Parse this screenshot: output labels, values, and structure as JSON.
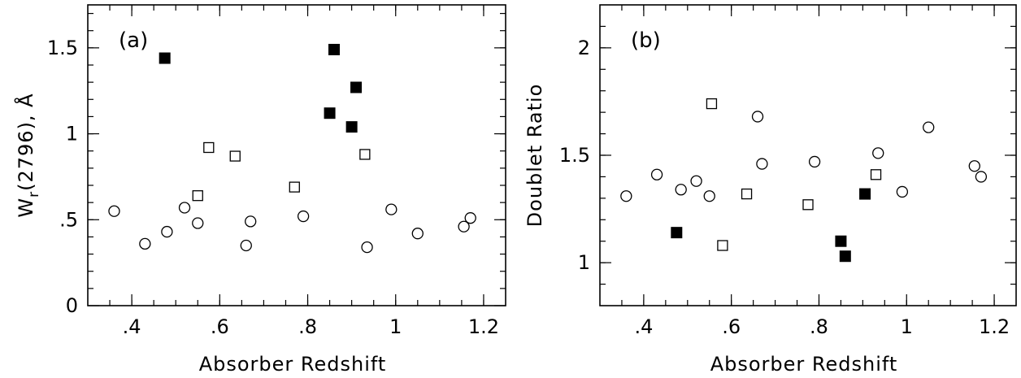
{
  "chart_data": [
    {
      "type": "scatter",
      "panel_label": "(a)",
      "xlabel": "Absorber Redshift",
      "ylabel_main": "W",
      "ylabel_sub": "r",
      "ylabel_rest": "(2796), Å",
      "xlim": [
        0.3,
        1.25
      ],
      "ylim": [
        0,
        1.75
      ],
      "xticks": [
        {
          "value": 0.4,
          "label": ".4"
        },
        {
          "value": 0.6,
          "label": ".6"
        },
        {
          "value": 0.8,
          "label": ".8"
        },
        {
          "value": 1.0,
          "label": "1"
        },
        {
          "value": 1.2,
          "label": "1.2"
        }
      ],
      "yticks": [
        {
          "value": 0,
          "label": "0"
        },
        {
          "value": 0.5,
          "label": ".5"
        },
        {
          "value": 1.0,
          "label": "1"
        },
        {
          "value": 1.5,
          "label": "1.5"
        }
      ],
      "minor_x_step": 0.05,
      "minor_y_step": 0.1,
      "series": [
        {
          "marker": "open-circle",
          "points": [
            [
              0.36,
              0.55
            ],
            [
              0.43,
              0.36
            ],
            [
              0.48,
              0.43
            ],
            [
              0.52,
              0.57
            ],
            [
              0.55,
              0.48
            ],
            [
              0.66,
              0.35
            ],
            [
              0.67,
              0.49
            ],
            [
              0.79,
              0.52
            ],
            [
              0.935,
              0.34
            ],
            [
              0.99,
              0.56
            ],
            [
              1.05,
              0.42
            ],
            [
              1.155,
              0.46
            ],
            [
              1.17,
              0.51
            ]
          ]
        },
        {
          "marker": "open-square",
          "points": [
            [
              0.55,
              0.64
            ],
            [
              0.575,
              0.92
            ],
            [
              0.635,
              0.87
            ],
            [
              0.77,
              0.69
            ],
            [
              0.93,
              0.88
            ]
          ]
        },
        {
          "marker": "filled-square",
          "points": [
            [
              0.475,
              1.44
            ],
            [
              0.85,
              1.12
            ],
            [
              0.86,
              1.49
            ],
            [
              0.9,
              1.04
            ],
            [
              0.91,
              1.27
            ]
          ]
        }
      ]
    },
    {
      "type": "scatter",
      "panel_label": "(b)",
      "xlabel": "Absorber Redshift",
      "ylabel": "Doublet Ratio",
      "xlim": [
        0.3,
        1.25
      ],
      "ylim": [
        0.8,
        2.2
      ],
      "xticks": [
        {
          "value": 0.4,
          "label": ".4"
        },
        {
          "value": 0.6,
          "label": ".6"
        },
        {
          "value": 0.8,
          "label": ".8"
        },
        {
          "value": 1.0,
          "label": "1"
        },
        {
          "value": 1.2,
          "label": "1.2"
        }
      ],
      "yticks": [
        {
          "value": 1.0,
          "label": "1"
        },
        {
          "value": 1.5,
          "label": "1.5"
        },
        {
          "value": 2.0,
          "label": "2"
        }
      ],
      "minor_x_step": 0.05,
      "minor_y_step": 0.1,
      "series": [
        {
          "marker": "open-circle",
          "points": [
            [
              0.36,
              1.31
            ],
            [
              0.43,
              1.41
            ],
            [
              0.485,
              1.34
            ],
            [
              0.52,
              1.38
            ],
            [
              0.55,
              1.31
            ],
            [
              0.66,
              1.68
            ],
            [
              0.67,
              1.46
            ],
            [
              0.79,
              1.47
            ],
            [
              0.935,
              1.51
            ],
            [
              0.99,
              1.33
            ],
            [
              1.05,
              1.63
            ],
            [
              1.155,
              1.45
            ],
            [
              1.17,
              1.4
            ]
          ]
        },
        {
          "marker": "open-square",
          "points": [
            [
              0.555,
              1.74
            ],
            [
              0.58,
              1.08
            ],
            [
              0.635,
              1.32
            ],
            [
              0.775,
              1.27
            ],
            [
              0.93,
              1.41
            ]
          ]
        },
        {
          "marker": "filled-square",
          "points": [
            [
              0.475,
              1.14
            ],
            [
              0.85,
              1.1
            ],
            [
              0.86,
              1.03
            ],
            [
              0.905,
              1.32
            ]
          ]
        }
      ]
    }
  ]
}
